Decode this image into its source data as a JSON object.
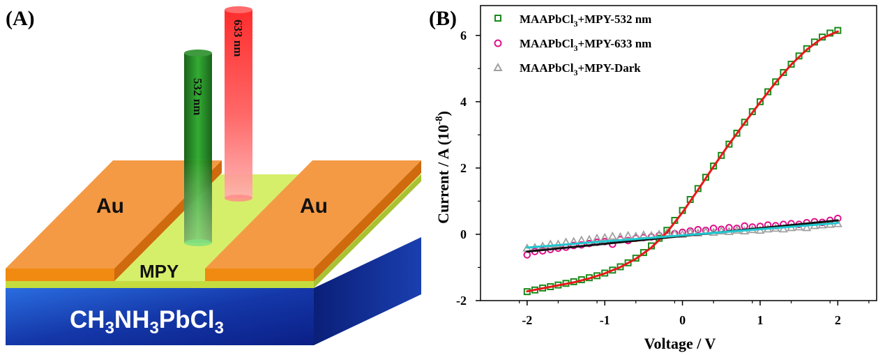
{
  "panel_a": {
    "label": "(A)",
    "electrode_left": "Au",
    "electrode_right": "Au",
    "channel": "MPY",
    "substrate": {
      "base": "CH",
      "s1": "3",
      "mid1": "NH",
      "s2": "3",
      "mid2": "PbCl",
      "s3": "3"
    },
    "beam_green": "532 nm",
    "beam_red": "633 nm",
    "colors": {
      "gold_top": "#f39a45",
      "gold_side": "#d9771a",
      "film": "#d9f06a",
      "substrate": "#1a3fa8",
      "beam_green": "#1f8a1f",
      "beam_red": "#ff2a2a"
    }
  },
  "panel_b": {
    "label": "(B)",
    "legend": [
      {
        "pre": "MAAPbCl",
        "sub": "3",
        "post": "+MPY-532 nm",
        "marker": "square",
        "color": "#1a8a1a"
      },
      {
        "pre": "MAAPbCl",
        "sub": "3",
        "post": "+MPY-633 nm",
        "marker": "circle",
        "color": "#e0108a"
      },
      {
        "pre": "MAAPbCl",
        "sub": "3",
        "post": "+MPY-Dark",
        "marker": "triangle",
        "color": "#a0a0a0"
      }
    ],
    "xlabel": "Voltage / V",
    "ylabel": "Current / A (10",
    "ylabel_exp": "-8",
    "ylabel_close": ")"
  },
  "chart_data": {
    "type": "scatter",
    "title": "",
    "xlabel": "Voltage / V",
    "ylabel": "Current / A (10^-8)",
    "xlim": [
      -2.6,
      2.5
    ],
    "ylim": [
      -2.0,
      6.9
    ],
    "xticks": [
      -2,
      -1,
      0,
      1,
      2
    ],
    "yticks": [
      -2,
      0,
      2,
      4,
      6
    ],
    "grid": false,
    "legend_position": "top-left",
    "series": [
      {
        "name": "MAAPbCl3+MPY-532 nm",
        "marker": "square",
        "color": "#1a8a1a",
        "x": [
          -2.0,
          -1.9,
          -1.8,
          -1.7,
          -1.6,
          -1.5,
          -1.4,
          -1.3,
          -1.2,
          -1.1,
          -1.0,
          -0.9,
          -0.8,
          -0.7,
          -0.6,
          -0.5,
          -0.4,
          -0.3,
          -0.2,
          -0.1,
          0.0,
          0.1,
          0.2,
          0.3,
          0.4,
          0.5,
          0.6,
          0.7,
          0.8,
          0.9,
          1.0,
          1.1,
          1.2,
          1.3,
          1.4,
          1.5,
          1.6,
          1.7,
          1.8,
          1.9,
          2.0
        ],
        "y": [
          -1.73,
          -1.68,
          -1.62,
          -1.58,
          -1.53,
          -1.48,
          -1.43,
          -1.37,
          -1.31,
          -1.25,
          -1.17,
          -1.08,
          -0.98,
          -0.86,
          -0.72,
          -0.55,
          -0.35,
          -0.12,
          0.12,
          0.42,
          0.72,
          1.05,
          1.38,
          1.72,
          2.06,
          2.38,
          2.72,
          3.05,
          3.38,
          3.7,
          4.0,
          4.3,
          4.6,
          4.88,
          5.13,
          5.38,
          5.6,
          5.8,
          5.95,
          6.07,
          6.15
        ]
      },
      {
        "name": "MAAPbCl3+MPY-633 nm",
        "marker": "circle",
        "color": "#e0108a",
        "x": [
          -2.0,
          -1.9,
          -1.8,
          -1.7,
          -1.6,
          -1.5,
          -1.4,
          -1.3,
          -1.2,
          -1.1,
          -1.0,
          -0.9,
          -0.8,
          -0.7,
          -0.6,
          -0.5,
          -0.4,
          -0.3,
          -0.2,
          -0.1,
          0.0,
          0.1,
          0.2,
          0.3,
          0.4,
          0.5,
          0.6,
          0.7,
          0.8,
          0.9,
          1.0,
          1.1,
          1.2,
          1.3,
          1.4,
          1.5,
          1.6,
          1.7,
          1.8,
          1.9,
          2.0
        ],
        "y": [
          -0.62,
          -0.52,
          -0.5,
          -0.46,
          -0.42,
          -0.39,
          -0.34,
          -0.32,
          -0.28,
          -0.24,
          -0.22,
          -0.3,
          -0.16,
          -0.19,
          -0.12,
          -0.1,
          -0.08,
          -0.04,
          -0.02,
          0.02,
          0.06,
          0.1,
          0.14,
          0.12,
          0.18,
          0.15,
          0.2,
          0.18,
          0.25,
          0.22,
          0.24,
          0.28,
          0.26,
          0.3,
          0.32,
          0.3,
          0.35,
          0.38,
          0.36,
          0.42,
          0.48
        ]
      },
      {
        "name": "MAAPbCl3+MPY-Dark",
        "marker": "triangle",
        "color": "#a0a0a0",
        "x": [
          -2.0,
          -1.9,
          -1.8,
          -1.7,
          -1.6,
          -1.5,
          -1.4,
          -1.3,
          -1.2,
          -1.1,
          -1.0,
          -0.9,
          -0.8,
          -0.7,
          -0.6,
          -0.5,
          -0.4,
          -0.3,
          -0.2,
          -0.1,
          0.0,
          0.1,
          0.2,
          0.3,
          0.4,
          0.5,
          0.6,
          0.7,
          0.8,
          0.9,
          1.0,
          1.1,
          1.2,
          1.3,
          1.4,
          1.5,
          1.6,
          1.7,
          1.8,
          1.9,
          2.0
        ],
        "y": [
          -0.42,
          -0.4,
          -0.36,
          -0.3,
          -0.3,
          -0.24,
          -0.22,
          -0.18,
          -0.16,
          -0.12,
          -0.1,
          -0.06,
          -0.08,
          -0.04,
          -0.06,
          -0.02,
          -0.04,
          0.0,
          0.04,
          0.02,
          0.0,
          0.06,
          0.04,
          0.08,
          0.06,
          0.1,
          0.08,
          0.12,
          0.1,
          0.14,
          0.12,
          0.16,
          0.18,
          0.16,
          0.2,
          0.22,
          0.2,
          0.26,
          0.28,
          0.3,
          0.32
        ]
      }
    ],
    "fits": [
      {
        "color": "#e81818",
        "x": [
          -2.0,
          -1.8,
          -1.6,
          -1.4,
          -1.2,
          -1.0,
          -0.8,
          -0.6,
          -0.4,
          -0.2,
          0.0,
          0.2,
          0.4,
          0.6,
          0.8,
          1.0,
          1.2,
          1.4,
          1.6,
          1.8,
          2.0
        ],
        "y": [
          -1.72,
          -1.63,
          -1.54,
          -1.45,
          -1.33,
          -1.18,
          -0.99,
          -0.74,
          -0.4,
          0.06,
          0.66,
          1.34,
          2.04,
          2.72,
          3.36,
          3.98,
          4.58,
          5.12,
          5.57,
          5.92,
          6.12
        ]
      },
      {
        "color": "#111111",
        "x": [
          -2.0,
          2.0
        ],
        "y": [
          -0.52,
          0.42
        ]
      },
      {
        "color": "#20c8d0",
        "x": [
          -2.0,
          2.0
        ],
        "y": [
          -0.4,
          0.34
        ]
      }
    ]
  }
}
